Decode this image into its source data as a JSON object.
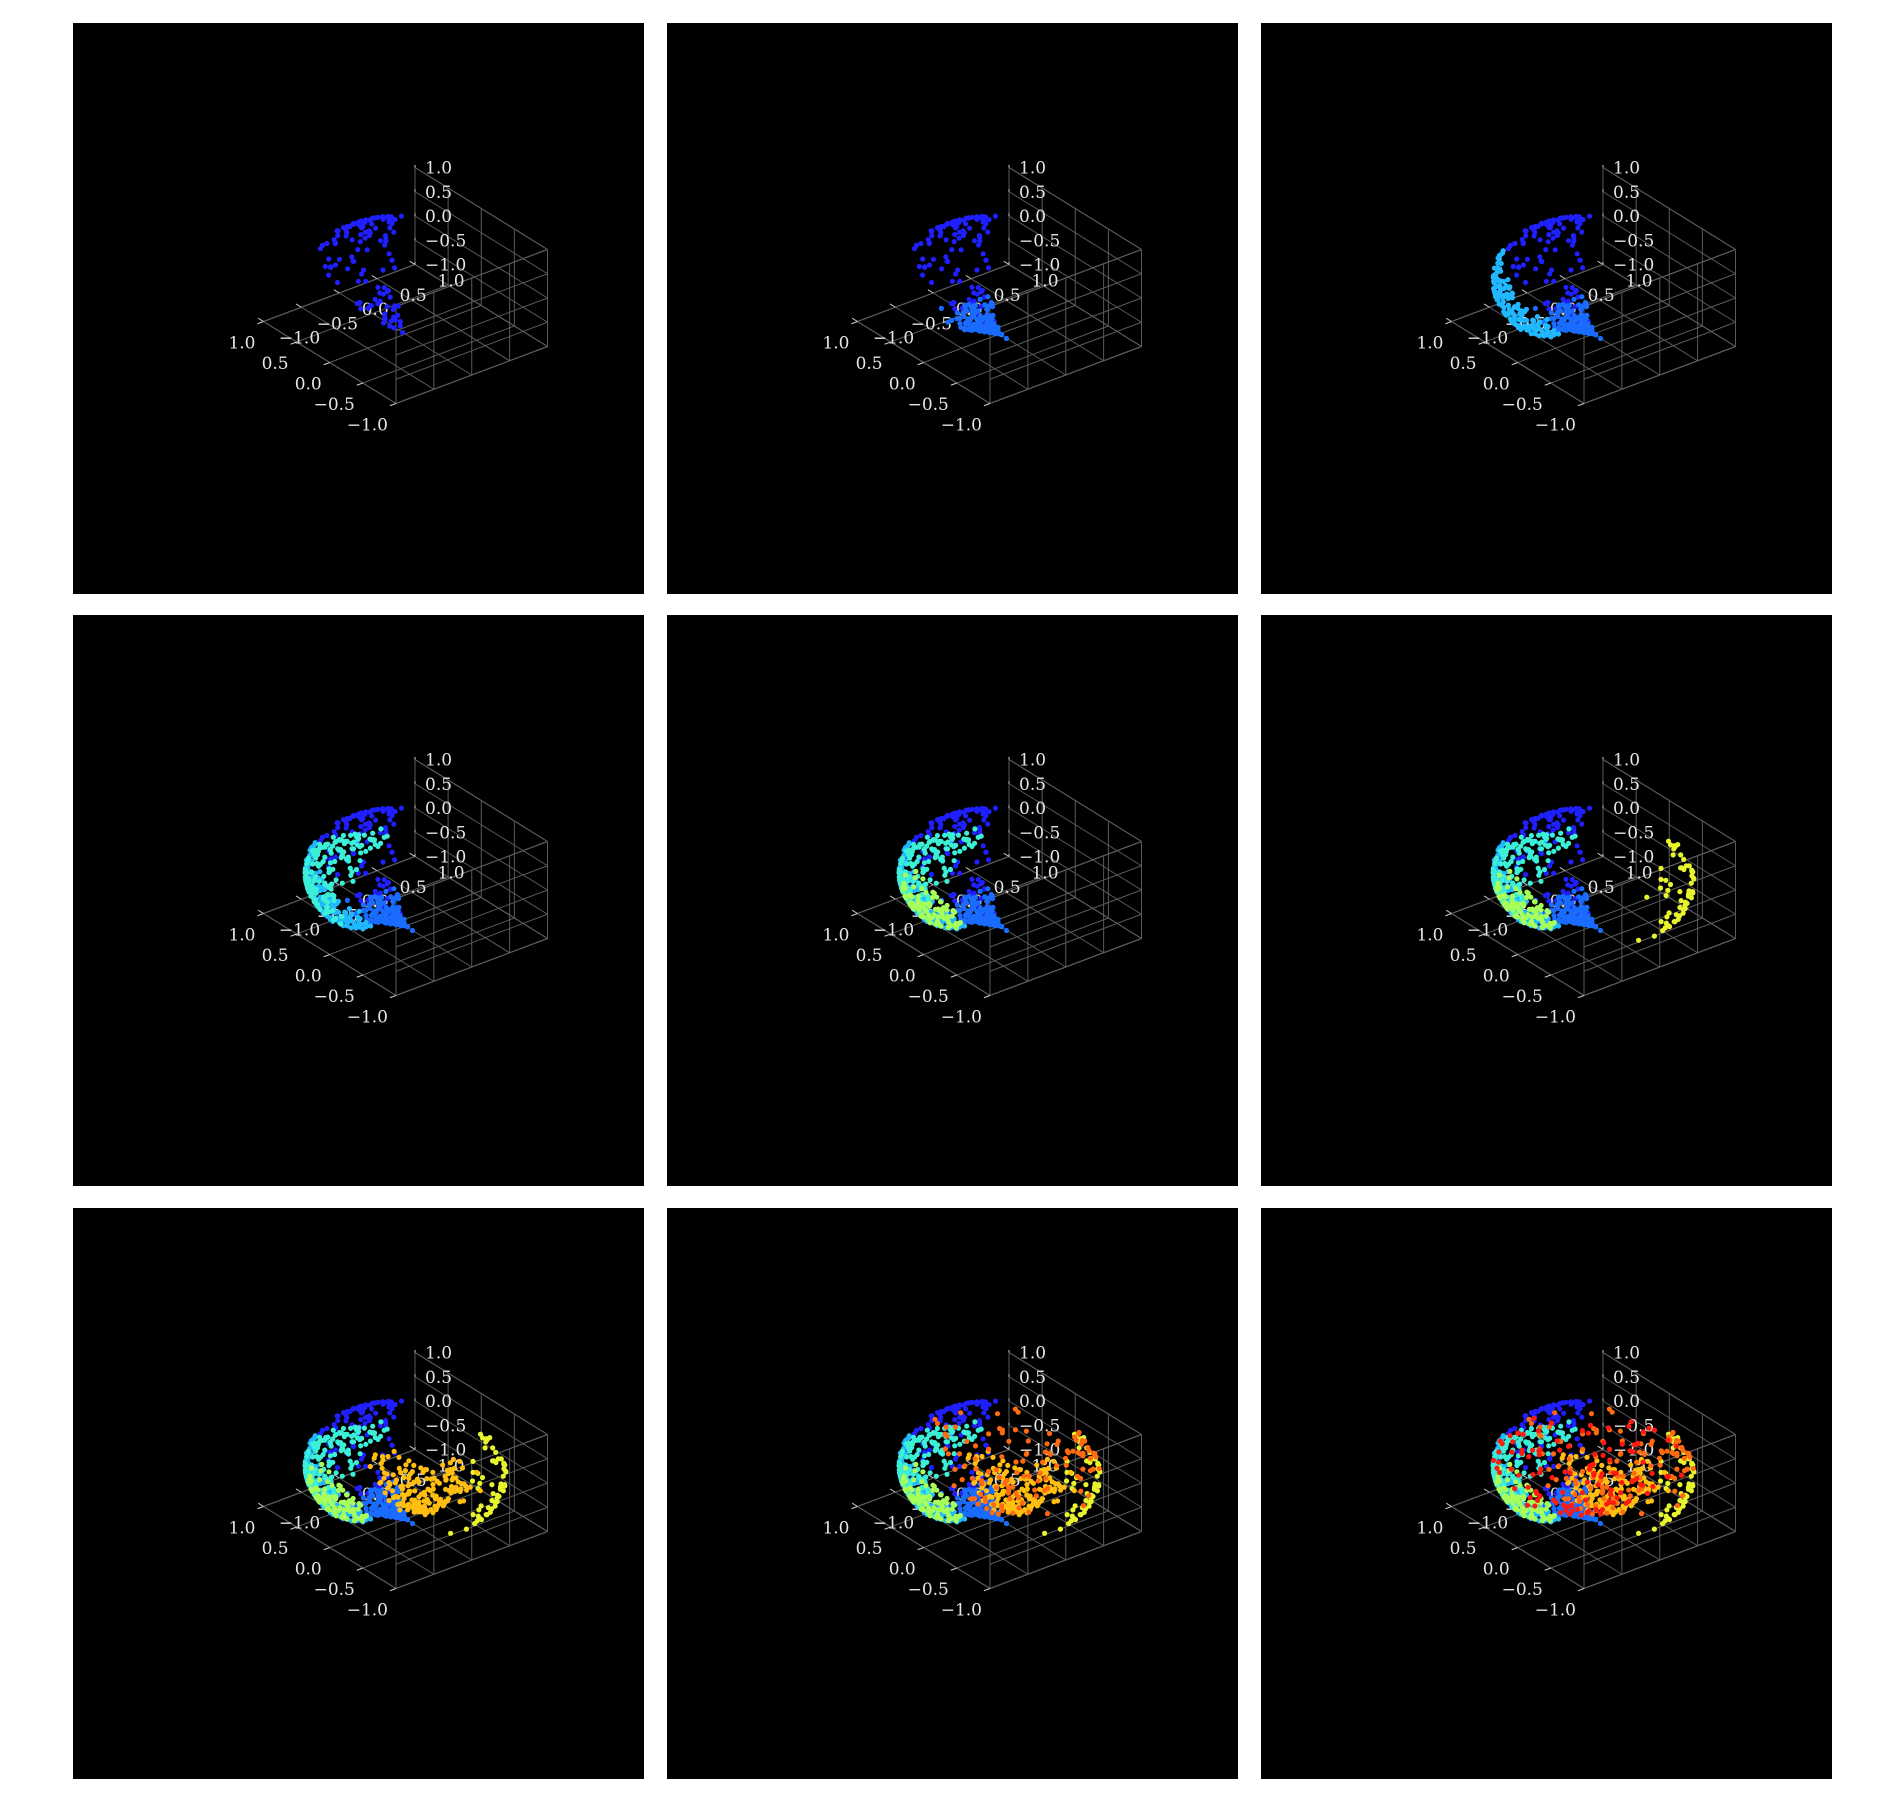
{
  "figure": {
    "colormap": [
      "#00008f",
      "#0000ff",
      "#0080ff",
      "#00ffff",
      "#80ff80",
      "#ffff00",
      "#ff8000",
      "#ff0000",
      "#800000"
    ],
    "background": "#000000",
    "grid_color": "#5a5a5a",
    "label_color": "#e6e6e6"
  },
  "chart_data": [
    {
      "type": "scatter3d",
      "panel": "r1c1",
      "title": "",
      "xlim": [
        -1,
        1
      ],
      "ylim": [
        -1,
        1
      ],
      "zlim": [
        -1,
        1
      ],
      "grid": true,
      "x_ticks": [
        "−1.0",
        "−0.5",
        "0.0",
        "0.5",
        "1.0"
      ],
      "y_ticks": [
        "−1.0",
        "−0.5",
        "0.0",
        "0.5",
        "1.0"
      ],
      "z_ticks": [
        "−1.0",
        "−0.5",
        "0.0",
        "0.5",
        "1.0"
      ],
      "stages_visible": 1,
      "stage_colors": [
        "#1f1fff"
      ]
    },
    {
      "type": "scatter3d",
      "panel": "r1c2",
      "title": "",
      "xlim": [
        -1,
        1
      ],
      "ylim": [
        -1,
        1
      ],
      "zlim": [
        -1,
        1
      ],
      "grid": true,
      "x_ticks": [
        "−1.0",
        "−0.5",
        "0.0",
        "0.5",
        "1.0"
      ],
      "y_ticks": [
        "−1.0",
        "−0.5",
        "0.0",
        "0.5",
        "1.0"
      ],
      "z_ticks": [
        "−1.0",
        "−0.5",
        "0.0",
        "0.5",
        "1.0"
      ],
      "stages_visible": 2,
      "stage_colors": [
        "#1f1fff",
        "#1a6cff"
      ]
    },
    {
      "type": "scatter3d",
      "panel": "r1c3",
      "title": "",
      "xlim": [
        -1,
        1
      ],
      "ylim": [
        -1,
        1
      ],
      "zlim": [
        -1,
        1
      ],
      "grid": true,
      "x_ticks": [
        "−1.0",
        "−0.5",
        "0.0",
        "0.5",
        "1.0"
      ],
      "y_ticks": [
        "−1.0",
        "−0.5",
        "0.0",
        "0.5",
        "1.0"
      ],
      "z_ticks": [
        "−1.0",
        "−0.5",
        "0.0",
        "0.5",
        "1.0"
      ],
      "stages_visible": 3,
      "stage_colors": [
        "#1f1fff",
        "#1a6cff",
        "#21b8ff"
      ]
    },
    {
      "type": "scatter3d",
      "panel": "r2c1",
      "title": "",
      "xlim": [
        -1,
        1
      ],
      "ylim": [
        -1,
        1
      ],
      "zlim": [
        -1,
        1
      ],
      "grid": true,
      "x_ticks": [
        "−1.0",
        "−0.5",
        "0.0",
        "0.5",
        "1.0"
      ],
      "y_ticks": [
        "−1.0",
        "−0.5",
        "0.0",
        "0.5",
        "1.0"
      ],
      "z_ticks": [
        "−1.0",
        "−0.5",
        "0.0",
        "0.5",
        "1.0"
      ],
      "stages_visible": 4,
      "stage_colors": [
        "#1f1fff",
        "#1a6cff",
        "#21b8ff",
        "#3cf0d8"
      ]
    },
    {
      "type": "scatter3d",
      "panel": "r2c2",
      "title": "",
      "xlim": [
        -1,
        1
      ],
      "ylim": [
        -1,
        1
      ],
      "zlim": [
        -1,
        1
      ],
      "grid": true,
      "x_ticks": [
        "−1.0",
        "−0.5",
        "0.0",
        "0.5",
        "1.0"
      ],
      "y_ticks": [
        "−1.0",
        "−0.5",
        "0.0",
        "0.5",
        "1.0"
      ],
      "z_ticks": [
        "−1.0",
        "−0.5",
        "0.0",
        "0.5",
        "1.0"
      ],
      "stages_visible": 5,
      "stage_colors": [
        "#1f1fff",
        "#1a6cff",
        "#21b8ff",
        "#3cf0d8",
        "#a8ff5a"
      ]
    },
    {
      "type": "scatter3d",
      "panel": "r2c3",
      "title": "",
      "xlim": [
        -1,
        1
      ],
      "ylim": [
        -1,
        1
      ],
      "zlim": [
        -1,
        1
      ],
      "grid": true,
      "x_ticks": [
        "−1.0",
        "−0.5",
        "0.0",
        "0.5",
        "1.0"
      ],
      "y_ticks": [
        "−1.0",
        "−0.5",
        "0.0",
        "0.5",
        "1.0"
      ],
      "z_ticks": [
        "−1.0",
        "−0.5",
        "0.0",
        "0.5",
        "1.0"
      ],
      "stages_visible": 6,
      "stage_colors": [
        "#1f1fff",
        "#1a6cff",
        "#21b8ff",
        "#3cf0d8",
        "#a8ff5a",
        "#e8f52c"
      ]
    },
    {
      "type": "scatter3d",
      "panel": "r3c1",
      "title": "",
      "xlim": [
        -1,
        1
      ],
      "ylim": [
        -1,
        1
      ],
      "zlim": [
        -1,
        1
      ],
      "grid": true,
      "x_ticks": [
        "−1.0",
        "−0.5",
        "0.0",
        "0.5",
        "1.0"
      ],
      "y_ticks": [
        "−1.0",
        "−0.5",
        "0.0",
        "0.5",
        "1.0"
      ],
      "z_ticks": [
        "−1.0",
        "−0.5",
        "0.0",
        "0.5",
        "1.0"
      ],
      "stages_visible": 7,
      "stage_colors": [
        "#1f1fff",
        "#1a6cff",
        "#21b8ff",
        "#3cf0d8",
        "#a8ff5a",
        "#e8f52c",
        "#ffbe10"
      ]
    },
    {
      "type": "scatter3d",
      "panel": "r3c2",
      "title": "",
      "xlim": [
        -1,
        1
      ],
      "ylim": [
        -1,
        1
      ],
      "zlim": [
        -1,
        1
      ],
      "grid": true,
      "x_ticks": [
        "−1.0",
        "−0.5",
        "0.0",
        "0.5",
        "1.0"
      ],
      "y_ticks": [
        "−1.0",
        "−0.5",
        "0.0",
        "0.5",
        "1.0"
      ],
      "z_ticks": [
        "−1.0",
        "−0.5",
        "0.0",
        "0.5",
        "1.0"
      ],
      "stages_visible": 8,
      "stage_colors": [
        "#1f1fff",
        "#1a6cff",
        "#21b8ff",
        "#3cf0d8",
        "#a8ff5a",
        "#e8f52c",
        "#ffbe10",
        "#ff6a10"
      ]
    },
    {
      "type": "scatter3d",
      "panel": "r3c3",
      "title": "",
      "xlim": [
        -1,
        1
      ],
      "ylim": [
        -1,
        1
      ],
      "zlim": [
        -1,
        1
      ],
      "grid": true,
      "x_ticks": [
        "−1.0",
        "−0.5",
        "0.0",
        "0.5",
        "1.0"
      ],
      "y_ticks": [
        "−1.0",
        "−0.5",
        "0.0",
        "0.5",
        "1.0"
      ],
      "z_ticks": [
        "−1.0",
        "−0.5",
        "0.0",
        "0.5",
        "1.0"
      ],
      "stages_visible": 9,
      "stage_colors": [
        "#1f1fff",
        "#1a6cff",
        "#21b8ff",
        "#3cf0d8",
        "#a8ff5a",
        "#e8f52c",
        "#ffbe10",
        "#ff6a10",
        "#ff1a10"
      ]
    }
  ]
}
